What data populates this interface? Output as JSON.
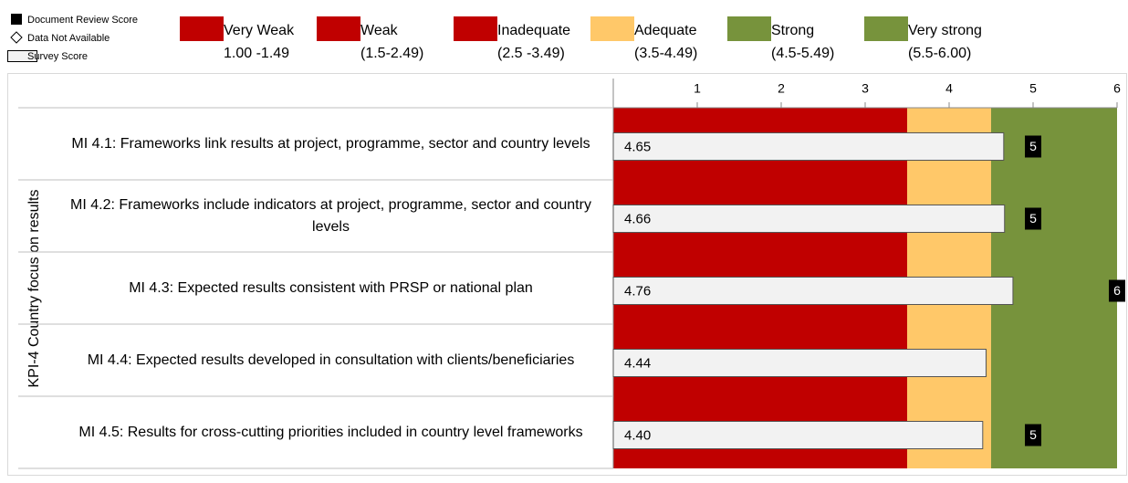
{
  "chart_data": {
    "type": "bar",
    "orientation": "horizontal",
    "y_axis_label": "KPI-4 Country focus on results",
    "categories": [
      "MI 4.1: Frameworks link results at project, programme, sector and country levels",
      "MI 4.2: Frameworks include indicators at project, programme, sector and country levels",
      "MI 4.3: Expected results consistent with PRSP or national plan",
      "MI 4.4: Expected results developed in consultation with clients/beneficiaries",
      "MI 4.5: Results for cross-cutting priorities included in country level frameworks"
    ],
    "series": [
      {
        "name": "Survey Score",
        "color": "#f2f2f2",
        "values": [
          4.65,
          4.66,
          4.76,
          4.44,
          4.4
        ],
        "value_labels": [
          "4.65",
          "4.66",
          "4.76",
          "4.44",
          "4.40"
        ]
      },
      {
        "name": "Document Review Score",
        "color": "#000000",
        "values": [
          5,
          5,
          6,
          null,
          5
        ]
      }
    ],
    "legend_markers": [
      "Document Review Score",
      "Data Not Available",
      "Survey Score"
    ],
    "rating_bands": [
      {
        "name": "Very Weak",
        "range": "1.00 -1.49",
        "color": "#c00000"
      },
      {
        "name": "Weak",
        "range": "(1.5-2.49)",
        "color": "#c00000"
      },
      {
        "name": "Inadequate",
        "range": "(2.5 -3.49)",
        "color": "#c00000"
      },
      {
        "name": "Adequate",
        "range": "(3.5-4.49)",
        "color": "#ffc869"
      },
      {
        "name": "Strong",
        "range": "(4.5-5.49)",
        "color": "#77933c"
      },
      {
        "name": "Very strong",
        "range": "(5.5-6.00)",
        "color": "#77933c"
      }
    ],
    "background_bands": [
      {
        "from": 0,
        "to": 3.5,
        "color": "#c00000"
      },
      {
        "from": 3.5,
        "to": 4.5,
        "color": "#ffc869"
      },
      {
        "from": 4.5,
        "to": 6,
        "color": "#77933c"
      }
    ],
    "xlim": [
      0,
      6
    ],
    "xticks": [
      1,
      2,
      3,
      4,
      5,
      6
    ]
  }
}
